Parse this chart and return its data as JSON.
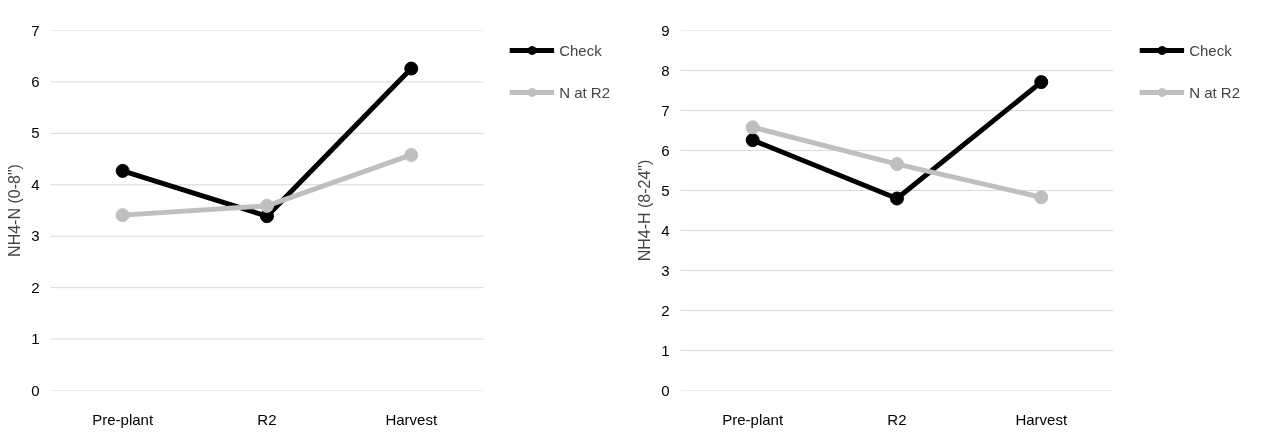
{
  "chart_data": [
    {
      "type": "line",
      "ylabel": "NH4-N (0-8\")",
      "categories": [
        "Pre-plant",
        "R2",
        "Harvest"
      ],
      "series": [
        {
          "name": "Check",
          "color": "#000000",
          "values": [
            4.27,
            3.39,
            6.26
          ]
        },
        {
          "name": "N at R2",
          "color": "#bfbfbf",
          "values": [
            3.41,
            3.59,
            4.58
          ]
        }
      ],
      "ylim": [
        0,
        7
      ],
      "yticks": [
        0,
        1,
        2,
        3,
        4,
        5,
        6,
        7
      ],
      "grid": "y",
      "legend": "top right",
      "marker": "circle",
      "line_style": "solid"
    },
    {
      "type": "line",
      "ylabel": "NH4-H (8-24\")",
      "categories": [
        "Pre-plant",
        "R2",
        "Harvest"
      ],
      "series": [
        {
          "name": "Check",
          "color": "#000000",
          "values": [
            6.26,
            4.8,
            7.71
          ]
        },
        {
          "name": "N at R2",
          "color": "#bfbfbf",
          "values": [
            6.58,
            5.66,
            4.83
          ]
        }
      ],
      "ylim": [
        0,
        9
      ],
      "yticks": [
        0,
        1,
        2,
        3,
        4,
        5,
        6,
        7,
        8,
        9
      ],
      "grid": "y",
      "legend": "top right",
      "marker": "circle",
      "line_style": "solid"
    }
  ]
}
